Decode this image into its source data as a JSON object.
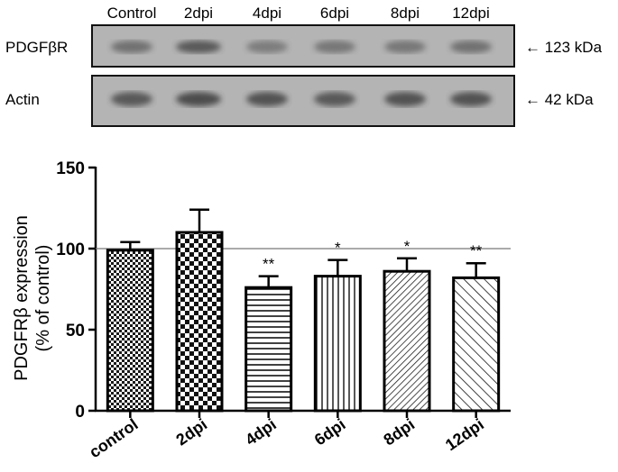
{
  "blot": {
    "lanes": [
      "Control",
      "2dpi",
      "4dpi",
      "6dpi",
      "8dpi",
      "12dpi"
    ],
    "rows": [
      {
        "label": "PDGFβR",
        "marker": "123 kDa"
      },
      {
        "label": "Actin",
        "marker": "42 kDa"
      }
    ],
    "arrow": "←"
  },
  "chart_data": {
    "type": "bar",
    "categories": [
      "control",
      "2dpi",
      "4dpi",
      "6dpi",
      "8dpi",
      "12dpi"
    ],
    "values": [
      99,
      110,
      76,
      83,
      86,
      82
    ],
    "errors": [
      5,
      14,
      7,
      10,
      8,
      9
    ],
    "significance": [
      "",
      "",
      "**",
      "*",
      "*",
      "**"
    ],
    "reference_line": 100,
    "ylabel_line1": "PDGFRβ expression",
    "ylabel_line2": "(% of control)",
    "xlabel": "",
    "ylim": [
      0,
      150
    ],
    "yticks": [
      0,
      50,
      100,
      150
    ],
    "patterns": [
      "checker-small",
      "checker-large",
      "horizontal-lines",
      "vertical-lines",
      "diagonal-dense",
      "diagonal-sparse"
    ],
    "grid": false,
    "legend": "none"
  }
}
